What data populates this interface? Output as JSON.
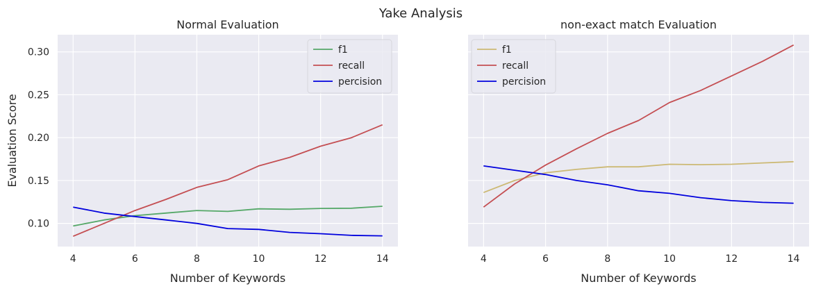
{
  "figure": {
    "suptitle": "Yake Analysis"
  },
  "chart_data": [
    {
      "type": "line",
      "title": "Normal Evaluation",
      "xlabel": "Number of Keywords",
      "ylabel": "Evaluation Score",
      "x": [
        4,
        5,
        6,
        7,
        8,
        9,
        10,
        11,
        12,
        13,
        14
      ],
      "xlim": [
        3.5,
        14.5
      ],
      "ylim": [
        0.073,
        0.32
      ],
      "xticks": [
        4,
        6,
        8,
        10,
        12,
        14
      ],
      "yticks": [
        0.1,
        0.15,
        0.2,
        0.25,
        0.3
      ],
      "ytick_labels": [
        "0.10",
        "0.15",
        "0.20",
        "0.25",
        "0.30"
      ],
      "grid": true,
      "legend_position": "top-right",
      "series": [
        {
          "name": "f1",
          "color": "#55a868",
          "values": [
            0.097,
            0.104,
            0.109,
            0.112,
            0.115,
            0.114,
            0.117,
            0.1165,
            0.1175,
            0.1177,
            0.12
          ]
        },
        {
          "name": "recall",
          "color": "#c44e52",
          "values": [
            0.085,
            0.1,
            0.115,
            0.128,
            0.142,
            0.151,
            0.167,
            0.177,
            0.19,
            0.2,
            0.215
          ]
        },
        {
          "name": "percision",
          "color": "#0000dd",
          "values": [
            0.119,
            0.112,
            0.108,
            0.104,
            0.1,
            0.094,
            0.093,
            0.0895,
            0.088,
            0.086,
            0.0855
          ]
        }
      ]
    },
    {
      "type": "line",
      "title": "non-exact match Evaluation",
      "xlabel": "Number of Keywords",
      "ylabel": "",
      "x": [
        4,
        5,
        6,
        7,
        8,
        9,
        10,
        11,
        12,
        13,
        14
      ],
      "xlim": [
        3.5,
        14.5
      ],
      "ylim": [
        0.073,
        0.32
      ],
      "xticks": [
        4,
        6,
        8,
        10,
        12,
        14
      ],
      "yticks": [
        0.1,
        0.15,
        0.2,
        0.25,
        0.3
      ],
      "ytick_labels": [],
      "grid": true,
      "legend_position": "top-left",
      "series": [
        {
          "name": "f1",
          "color": "#ccb974",
          "values": [
            0.136,
            0.15,
            0.159,
            0.163,
            0.166,
            0.166,
            0.169,
            0.1685,
            0.169,
            0.1705,
            0.172
          ]
        },
        {
          "name": "recall",
          "color": "#c44e52",
          "values": [
            0.119,
            0.146,
            0.168,
            0.187,
            0.205,
            0.22,
            0.241,
            0.255,
            0.272,
            0.289,
            0.308
          ]
        },
        {
          "name": "percision",
          "color": "#0000dd",
          "values": [
            0.167,
            0.162,
            0.157,
            0.15,
            0.145,
            0.138,
            0.135,
            0.13,
            0.1265,
            0.1245,
            0.1235
          ]
        }
      ]
    }
  ]
}
